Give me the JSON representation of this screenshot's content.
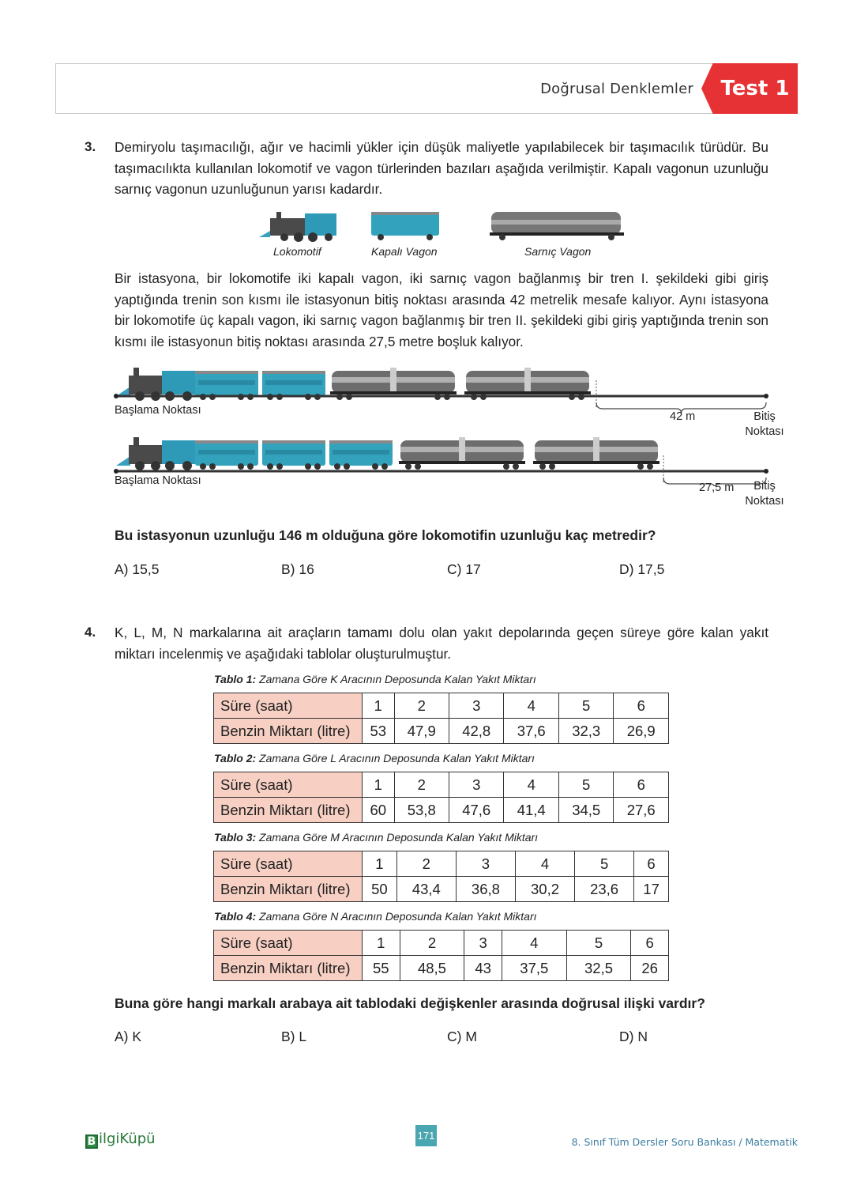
{
  "header": {
    "title": "Doğrusal Denklemler",
    "test_label": "Test 1",
    "accent": "#e63234"
  },
  "q3": {
    "number": "3.",
    "intro": "Demiryolu taşımacılığı, ağır ve hacimli yükler için düşük maliyetle yapılabilecek bir taşımacılık türüdür. Bu taşımacılıkta kullanılan lokomotif ve vagon türlerinden bazıları aşağıda verilmiştir. Kapalı vagonun uzunluğu sarnıç vagonun uzunluğunun yarısı kadardır.",
    "legend": [
      "Lokomotif",
      "Kapalı Vagon",
      "Sarnıç Vagon"
    ],
    "body": "Bir istasyona, bir lokomotife iki kapalı vagon, iki sarnıç vagon bağlanmış bir tren I. şekildeki gibi giriş yaptığında trenin son kısmı ile istasyonun bitiş noktası arasında 42 metrelik mesafe kalıyor. Aynı istasyona bir lokomotife üç kapalı vagon, iki sarnıç vagon bağlanmış bir tren II. şekildeki gibi giriş yaptığında trenin son kısmı ile istasyonun bitiş noktası arasında 27,5 metre boşluk kalıyor.",
    "figure1": {
      "start": "Başlama Noktası",
      "end": "Bitiş Noktası",
      "gap": "42 m"
    },
    "figure2": {
      "start": "Başlama Noktası",
      "end": "Bitiş Noktası",
      "gap": "27,5 m"
    },
    "question": "Bu istasyonun uzunluğu 146 m olduğuna göre lokomotifin uzunluğu kaç metredir?",
    "options": [
      "A)  15,5",
      "B)  16",
      "C)  17",
      "D)  17,5"
    ]
  },
  "q4": {
    "number": "4.",
    "intro": "K, L, M, N markalarına ait araçların tamamı dolu olan yakıt depolarında geçen süreye göre kalan yakıt miktarı incelenmiş ve aşağıdaki tablolar oluşturulmuştur.",
    "tables": [
      {
        "label": "Tablo 1:",
        "caption": " Zamana Göre K Aracının Deposunda Kalan Yakıt Miktarı",
        "row1": "Süre (saat)",
        "row2": "Benzin Miktarı (litre)",
        "hours": [
          "1",
          "2",
          "3",
          "4",
          "5",
          "6"
        ],
        "values": [
          "53",
          "47,9",
          "42,8",
          "37,6",
          "32,3",
          "26,9"
        ]
      },
      {
        "label": "Tablo 2:",
        "caption": " Zamana Göre L Aracının Deposunda Kalan Yakıt Miktarı",
        "row1": "Süre (saat)",
        "row2": "Benzin Miktarı (litre)",
        "hours": [
          "1",
          "2",
          "3",
          "4",
          "5",
          "6"
        ],
        "values": [
          "60",
          "53,8",
          "47,6",
          "41,4",
          "34,5",
          "27,6"
        ]
      },
      {
        "label": "Tablo 3:",
        "caption": " Zamana Göre M Aracının Deposunda Kalan Yakıt Miktarı",
        "row1": "Süre (saat)",
        "row2": "Benzin Miktarı (litre)",
        "hours": [
          "1",
          "2",
          "3",
          "4",
          "5",
          "6"
        ],
        "values": [
          "50",
          "43,4",
          "36,8",
          "30,2",
          "23,6",
          "17"
        ]
      },
      {
        "label": "Tablo 4:",
        "caption": " Zamana Göre N Aracının Deposunda Kalan Yakıt Miktarı",
        "row1": "Süre (saat)",
        "row2": "Benzin Miktarı (litre)",
        "hours": [
          "1",
          "2",
          "3",
          "4",
          "5",
          "6"
        ],
        "values": [
          "55",
          "48,5",
          "43",
          "37,5",
          "32,5",
          "26"
        ]
      }
    ],
    "question": "Buna göre hangi markalı arabaya ait tablodaki değişkenler arasında doğrusal ilişki vardır?",
    "options": [
      "A)  K",
      "B)  L",
      "C)  C) M",
      "D)  N"
    ]
  },
  "footer": {
    "logo_b": "B",
    "logo_rest": "ilgiKüpü",
    "page": "171",
    "book": "8. Sınıf Tüm Dersler Soru Bankası / Matematik"
  }
}
